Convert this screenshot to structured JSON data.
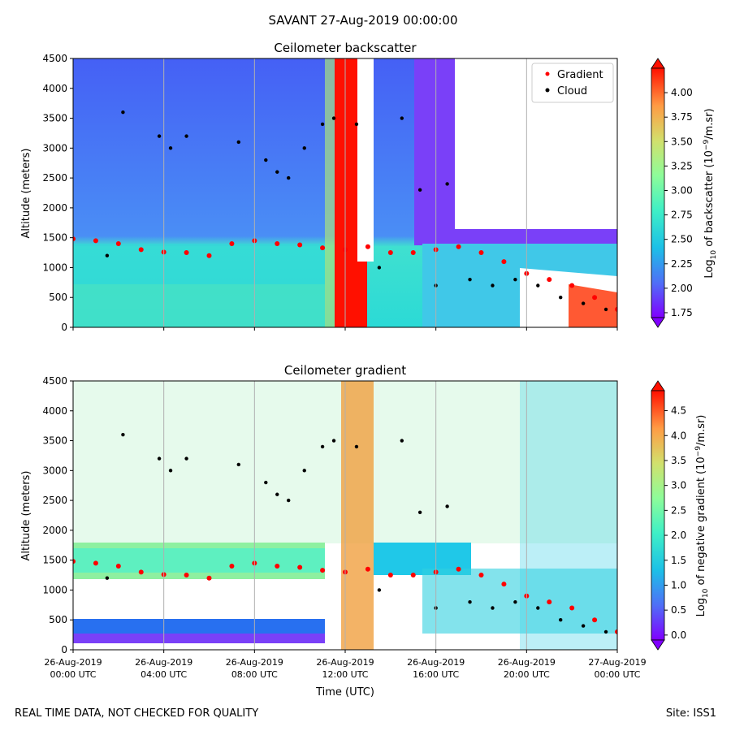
{
  "figure": {
    "suptitle": "SAVANT 27-Aug-2019 00:00:00",
    "footer_left": "REAL TIME DATA, NOT CHECKED FOR QUALITY",
    "footer_right": "Site: ISS1"
  },
  "chart_data": [
    {
      "type": "heatmap",
      "title": "Ceilometer backscatter",
      "ylabel": "Altitude (meters)",
      "xlabel": "",
      "ylim": [
        0,
        4500
      ],
      "yticks": [
        0,
        500,
        1000,
        1500,
        2000,
        2500,
        3000,
        3500,
        4000,
        4500
      ],
      "xlim_hours": [
        0,
        24
      ],
      "grid": "vertical lines every 4 hours",
      "legend": {
        "placement": "top-right",
        "entries": [
          {
            "label": "Gradient",
            "color": "#ff0000",
            "marker": "dot"
          },
          {
            "label": "Cloud",
            "color": "#000000",
            "marker": "dot"
          }
        ]
      },
      "colorbar": {
        "label": "Log10 of backscatter (10^-9/m.sr)",
        "label_main": "Log",
        "label_sub": "10",
        "label_rest1": " of backscatter (10",
        "label_sup": "−9",
        "label_rest2": "/m.sr)",
        "ticks": [
          "1.75",
          "2.00",
          "2.25",
          "2.50",
          "2.75",
          "3.00",
          "3.25",
          "3.50",
          "3.75",
          "4.00"
        ],
        "range": [
          1.7,
          4.25
        ]
      },
      "series": [
        {
          "name": "Gradient",
          "color": "#ff0000",
          "x_hours": [
            0,
            1,
            2,
            3,
            4,
            5,
            6,
            7,
            8,
            9,
            10,
            11,
            12,
            13,
            14,
            15,
            16,
            17,
            18,
            19,
            20,
            21,
            22,
            23,
            24
          ],
          "y": [
            1480,
            1450,
            1400,
            1300,
            1260,
            1250,
            1200,
            1400,
            1450,
            1400,
            1380,
            1330,
            1300,
            1350,
            1250,
            1250,
            1300,
            1350,
            1250,
            1100,
            900,
            800,
            700,
            500,
            300
          ]
        },
        {
          "name": "Cloud",
          "color": "#000000",
          "x_hours": [
            1.5,
            2.2,
            3.8,
            4.3,
            5.0,
            7.3,
            8.5,
            9.0,
            9.5,
            10.2,
            11.0,
            11.5,
            12.5,
            13.5,
            14.5,
            15.3,
            16.0,
            16.5,
            17.5,
            18.5,
            19.5,
            20.5,
            21.5,
            22.5,
            23.5
          ],
          "y": [
            1200,
            3600,
            3200,
            3000,
            3200,
            3100,
            2800,
            2600,
            2500,
            3000,
            3400,
            3500,
            3400,
            1000,
            3500,
            2300,
            700,
            2400,
            800,
            700,
            800,
            700,
            500,
            400,
            300
          ]
        }
      ]
    },
    {
      "type": "heatmap",
      "title": "Ceilometer gradient",
      "ylabel": "Altitude (meters)",
      "xlabel": "Time (UTC)",
      "ylim": [
        0,
        4500
      ],
      "yticks": [
        0,
        500,
        1000,
        1500,
        2000,
        2500,
        3000,
        3500,
        4000,
        4500
      ],
      "xlim_hours": [
        0,
        24
      ],
      "xticks": [
        {
          "hour": 0,
          "line1": "26-Aug-2019",
          "line2": "00:00 UTC"
        },
        {
          "hour": 4,
          "line1": "26-Aug-2019",
          "line2": "04:00 UTC"
        },
        {
          "hour": 8,
          "line1": "26-Aug-2019",
          "line2": "08:00 UTC"
        },
        {
          "hour": 12,
          "line1": "26-Aug-2019",
          "line2": "12:00 UTC"
        },
        {
          "hour": 16,
          "line1": "26-Aug-2019",
          "line2": "16:00 UTC"
        },
        {
          "hour": 20,
          "line1": "26-Aug-2019",
          "line2": "20:00 UTC"
        },
        {
          "hour": 24,
          "line1": "27-Aug-2019",
          "line2": "00:00 UTC"
        }
      ],
      "grid": "vertical lines every 4 hours",
      "colorbar": {
        "label": "Log10 of negative gradient (10^-9/m.sr)",
        "label_main": "Log",
        "label_sub": "10",
        "label_rest1": " of negative gradient (10",
        "label_sup": "−9",
        "label_rest2": "/m.sr)",
        "ticks": [
          "0.0",
          "0.5",
          "1.0",
          "1.5",
          "2.0",
          "2.5",
          "3.0",
          "3.5",
          "4.0",
          "4.5"
        ],
        "range": [
          -0.1,
          4.9
        ]
      },
      "series": [
        {
          "name": "Gradient",
          "color": "#ff0000",
          "x_hours": [
            0,
            1,
            2,
            3,
            4,
            5,
            6,
            7,
            8,
            9,
            10,
            11,
            12,
            13,
            14,
            15,
            16,
            17,
            18,
            19,
            20,
            21,
            22,
            23,
            24
          ],
          "y": [
            1480,
            1450,
            1400,
            1300,
            1260,
            1250,
            1200,
            1400,
            1450,
            1400,
            1380,
            1330,
            1300,
            1350,
            1250,
            1250,
            1300,
            1350,
            1250,
            1100,
            900,
            800,
            700,
            500,
            300
          ]
        },
        {
          "name": "Cloud",
          "color": "#000000",
          "x_hours": [
            1.5,
            2.2,
            3.8,
            4.3,
            5.0,
            7.3,
            8.5,
            9.0,
            9.5,
            10.2,
            11.0,
            11.5,
            12.5,
            13.5,
            14.5,
            15.3,
            16.0,
            16.5,
            17.5,
            18.5,
            19.5,
            20.5,
            21.5,
            22.5,
            23.5
          ],
          "y": [
            1200,
            3600,
            3200,
            3000,
            3200,
            3100,
            2800,
            2600,
            2500,
            3000,
            3400,
            3500,
            3400,
            1000,
            3500,
            2300,
            700,
            2400,
            800,
            700,
            800,
            700,
            500,
            400,
            300
          ]
        }
      ]
    }
  ]
}
